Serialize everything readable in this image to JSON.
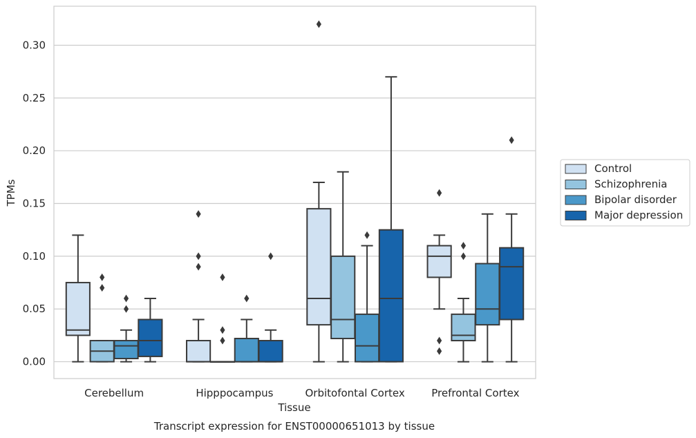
{
  "chart_data": {
    "type": "box",
    "title": "Transcript expression for ENST00000651013 by tissue",
    "xlabel": "Tissue",
    "ylabel": "TPMs",
    "ylim": [
      -0.016,
      0.337
    ],
    "yticks": [
      0.0,
      0.05,
      0.1,
      0.15,
      0.2,
      0.25,
      0.3
    ],
    "ytick_labels": [
      "0.00",
      "0.05",
      "0.10",
      "0.15",
      "0.20",
      "0.25",
      "0.30"
    ],
    "grid": "horizontal",
    "legend_position": "right",
    "categories": [
      "Cerebellum",
      "Hipppocampus",
      "Orbitofontal Cortex",
      "Prefrontal Cortex"
    ],
    "series": [
      {
        "name": "Control",
        "color": "#d0e1f2",
        "boxes": [
          {
            "whislo": 0.0,
            "q1": 0.025,
            "med": 0.03,
            "q3": 0.075,
            "whishi": 0.12,
            "fliers": []
          },
          {
            "whislo": 0.0,
            "q1": 0.0,
            "med": 0.0,
            "q3": 0.02,
            "whishi": 0.04,
            "fliers": [
              0.09,
              0.1,
              0.14
            ]
          },
          {
            "whislo": 0.0,
            "q1": 0.035,
            "med": 0.06,
            "q3": 0.145,
            "whishi": 0.17,
            "fliers": [
              0.32
            ]
          },
          {
            "whislo": 0.05,
            "q1": 0.08,
            "med": 0.1,
            "q3": 0.11,
            "whishi": 0.12,
            "fliers": [
              0.16,
              0.02,
              0.01
            ]
          }
        ]
      },
      {
        "name": "Schizophrenia",
        "color": "#94c4df",
        "boxes": [
          {
            "whislo": 0.0,
            "q1": 0.0,
            "med": 0.01,
            "q3": 0.02,
            "whishi": 0.02,
            "fliers": [
              0.07,
              0.08
            ]
          },
          {
            "whislo": 0.0,
            "q1": 0.0,
            "med": 0.0,
            "q3": 0.0,
            "whishi": 0.0,
            "fliers": [
              0.02,
              0.03,
              0.08
            ]
          },
          {
            "whislo": 0.0,
            "q1": 0.022,
            "med": 0.04,
            "q3": 0.1,
            "whishi": 0.18,
            "fliers": []
          },
          {
            "whislo": 0.0,
            "q1": 0.02,
            "med": 0.025,
            "q3": 0.045,
            "whishi": 0.06,
            "fliers": [
              0.1,
              0.11
            ]
          }
        ]
      },
      {
        "name": "Bipolar disorder",
        "color": "#4a98c9",
        "boxes": [
          {
            "whislo": 0.0,
            "q1": 0.003,
            "med": 0.015,
            "q3": 0.02,
            "whishi": 0.03,
            "fliers": [
              0.05,
              0.06
            ]
          },
          {
            "whislo": 0.0,
            "q1": 0.0,
            "med": 0.0,
            "q3": 0.022,
            "whishi": 0.04,
            "fliers": [
              0.06
            ]
          },
          {
            "whislo": 0.0,
            "q1": 0.0,
            "med": 0.015,
            "q3": 0.045,
            "whishi": 0.11,
            "fliers": [
              0.12
            ]
          },
          {
            "whislo": 0.0,
            "q1": 0.035,
            "med": 0.05,
            "q3": 0.093,
            "whishi": 0.14,
            "fliers": []
          }
        ]
      },
      {
        "name": "Major depression",
        "color": "#1764ab",
        "boxes": [
          {
            "whislo": 0.0,
            "q1": 0.005,
            "med": 0.02,
            "q3": 0.04,
            "whishi": 0.06,
            "fliers": []
          },
          {
            "whislo": 0.0,
            "q1": 0.0,
            "med": 0.0,
            "q3": 0.02,
            "whishi": 0.03,
            "fliers": [
              0.1
            ]
          },
          {
            "whislo": 0.0,
            "q1": 0.0,
            "med": 0.06,
            "q3": 0.125,
            "whishi": 0.27,
            "fliers": []
          },
          {
            "whislo": 0.0,
            "q1": 0.04,
            "med": 0.09,
            "q3": 0.108,
            "whishi": 0.14,
            "fliers": [
              0.21
            ]
          }
        ]
      }
    ]
  }
}
